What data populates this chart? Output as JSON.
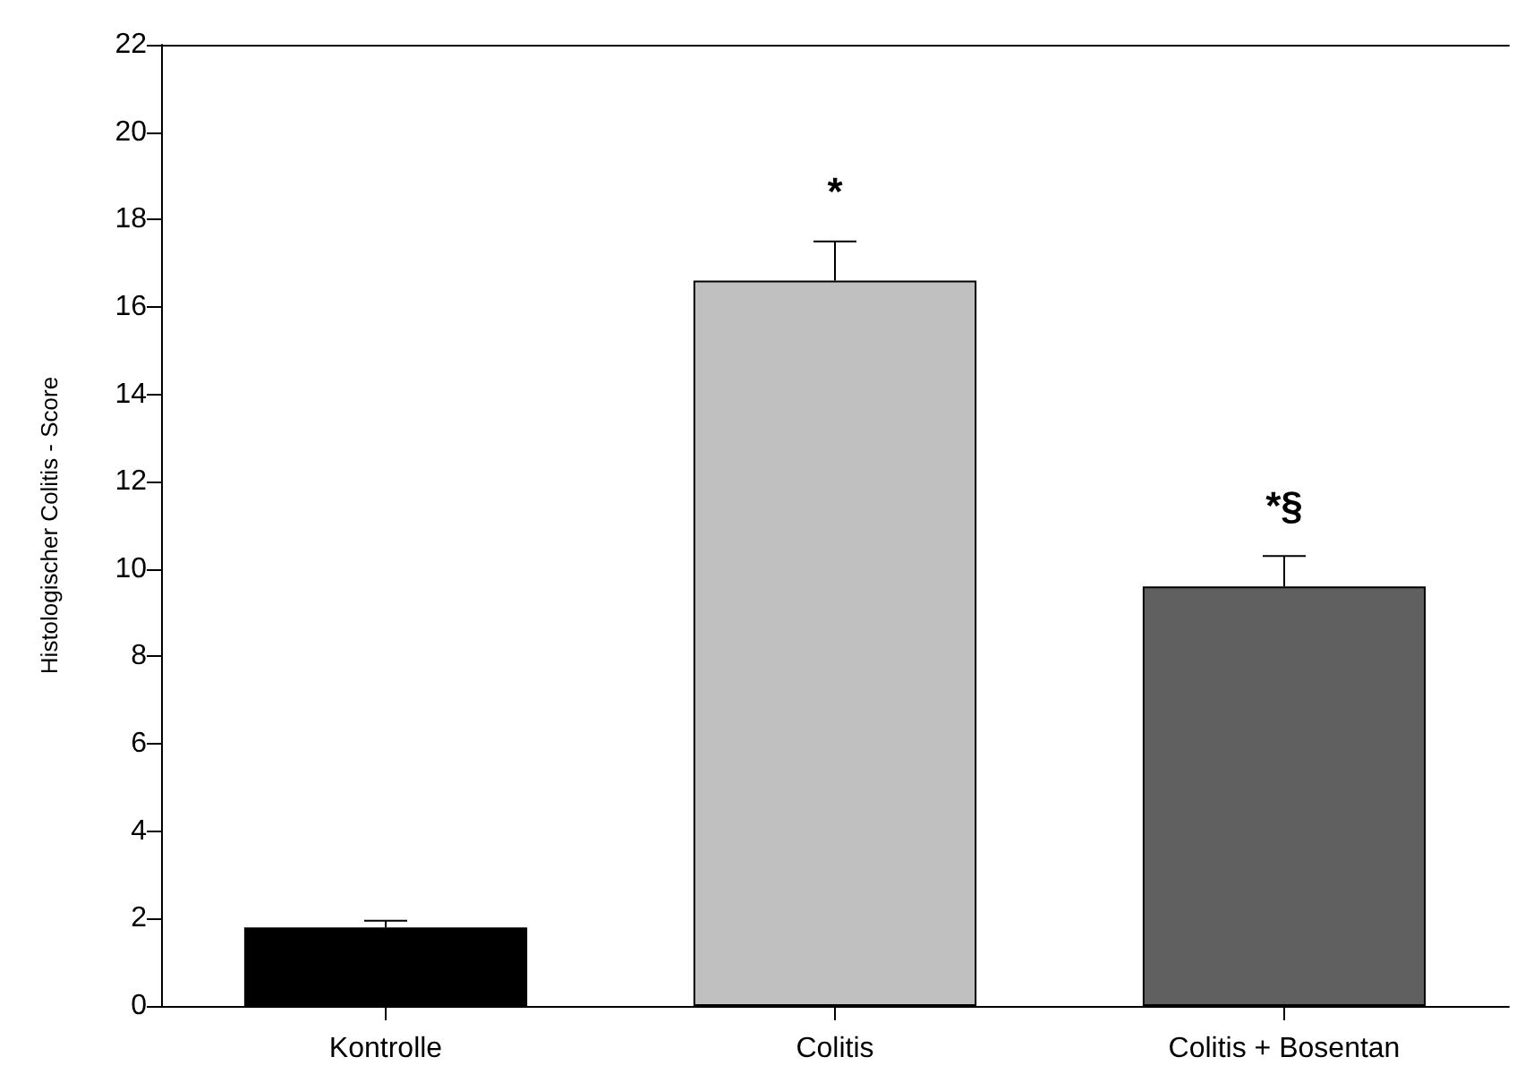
{
  "chart_data": {
    "type": "bar",
    "ylabel": "Histologischer Colitis - Score",
    "categories": [
      "Kontrolle",
      "Colitis",
      "Colitis + Bosentan"
    ],
    "values": [
      1.8,
      16.6,
      9.6
    ],
    "colors": [
      "#000000",
      "#c0c0c0",
      "#606060"
    ],
    "errors": [
      0.15,
      0.9,
      0.7
    ],
    "ylim": [
      0,
      22
    ],
    "yticks": [
      0,
      2,
      4,
      6,
      8,
      10,
      12,
      14,
      16,
      18,
      20,
      22
    ],
    "grid": false,
    "annotations": [
      "*",
      "*§"
    ]
  }
}
